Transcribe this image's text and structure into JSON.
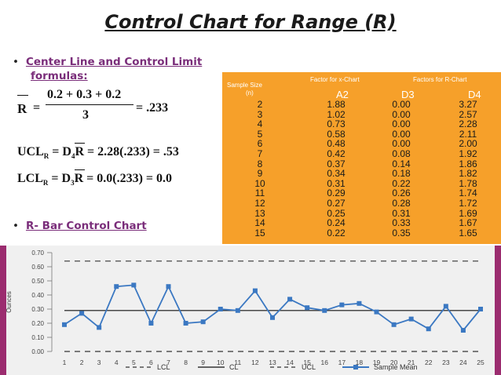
{
  "slide": {
    "title": "Control Chart for Range (R)",
    "bullet1_line1": "Center Line and Control Limit",
    "bullet1_line2": "formulas:",
    "bullet2": "R- Bar Control Chart"
  },
  "formulas": {
    "rbar_num": "0.2 + 0.3 + 0.2",
    "rbar_den": "3",
    "rbar_val": "= .233",
    "ucl": "= 2.28(.233) = .53",
    "lcl": "= 0.0(.233) = 0.0"
  },
  "table": {
    "header_sample": "Sample Size",
    "header_n": "(n)",
    "header_x": "Factor for x-Chart",
    "header_r": "Factors for R-Chart",
    "col_a2": "A2",
    "col_d3": "D3",
    "col_d4": "D4",
    "rows": [
      [
        "2",
        "1.88",
        "0.00",
        "3.27"
      ],
      [
        "3",
        "1.02",
        "0.00",
        "2.57"
      ],
      [
        "4",
        "0.73",
        "0.00",
        "2.28"
      ],
      [
        "5",
        "0.58",
        "0.00",
        "2.11"
      ],
      [
        "6",
        "0.48",
        "0.00",
        "2.00"
      ],
      [
        "7",
        "0.42",
        "0.08",
        "1.92"
      ],
      [
        "8",
        "0.37",
        "0.14",
        "1.86"
      ],
      [
        "9",
        "0.34",
        "0.18",
        "1.82"
      ],
      [
        "10",
        "0.31",
        "0.22",
        "1.78"
      ],
      [
        "11",
        "0.29",
        "0.26",
        "1.74"
      ],
      [
        "12",
        "0.27",
        "0.28",
        "1.72"
      ],
      [
        "13",
        "0.25",
        "0.31",
        "1.69"
      ],
      [
        "14",
        "0.24",
        "0.33",
        "1.67"
      ],
      [
        "15",
        "0.22",
        "0.35",
        "1.65"
      ]
    ]
  },
  "chart_data": {
    "type": "line",
    "ylabel": "Ounces",
    "ylim": [
      0,
      0.7
    ],
    "yticks": [
      "0.00",
      "0.10",
      "0.20",
      "0.30",
      "0.40",
      "0.50",
      "0.60",
      "0.70"
    ],
    "x": [
      1,
      2,
      3,
      4,
      5,
      6,
      7,
      8,
      9,
      10,
      11,
      12,
      13,
      14,
      15,
      16,
      17,
      18,
      19,
      20,
      21,
      22,
      23,
      24,
      25
    ],
    "series": [
      {
        "name": "LCL",
        "values": [
          0,
          0,
          0,
          0,
          0,
          0,
          0,
          0,
          0,
          0,
          0,
          0,
          0,
          0,
          0,
          0,
          0,
          0,
          0,
          0,
          0,
          0,
          0,
          0,
          0
        ],
        "color": "#333333",
        "dash": true
      },
      {
        "name": "CL",
        "values": [
          0.29,
          0.29,
          0.29,
          0.29,
          0.29,
          0.29,
          0.29,
          0.29,
          0.29,
          0.29,
          0.29,
          0.29,
          0.29,
          0.29,
          0.29,
          0.29,
          0.29,
          0.29,
          0.29,
          0.29,
          0.29,
          0.29,
          0.29,
          0.29,
          0.29
        ],
        "color": "#111111",
        "dash": false
      },
      {
        "name": "UCL",
        "values": [
          0.64,
          0.64,
          0.64,
          0.64,
          0.64,
          0.64,
          0.64,
          0.64,
          0.64,
          0.64,
          0.64,
          0.64,
          0.64,
          0.64,
          0.64,
          0.64,
          0.64,
          0.64,
          0.64,
          0.64,
          0.64,
          0.64,
          0.64,
          0.64,
          0.64
        ],
        "color": "#333333",
        "dash": true
      },
      {
        "name": "Sample Mean",
        "values": [
          0.19,
          0.27,
          0.17,
          0.46,
          0.47,
          0.2,
          0.46,
          0.2,
          0.21,
          0.3,
          0.29,
          0.43,
          0.24,
          0.37,
          0.31,
          0.29,
          0.33,
          0.34,
          0.28,
          0.19,
          0.23,
          0.16,
          0.32,
          0.15,
          0.3
        ],
        "color": "#3b78c2",
        "dash": false,
        "markers": true
      }
    ],
    "legend": "bottom"
  }
}
